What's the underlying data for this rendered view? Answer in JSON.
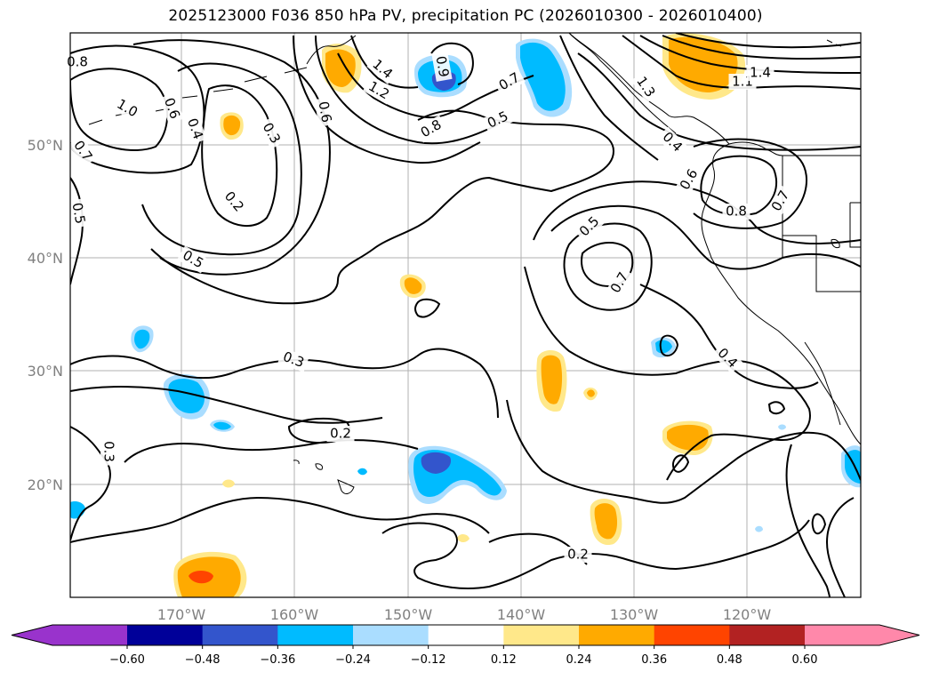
{
  "title": "2025123000 F036 850 hPa PV, precipitation PC (2026010300 - 2026010400)",
  "map": {
    "latitude_labels": [
      "50°N",
      "40°N",
      "30°N",
      "20°N"
    ],
    "longitude_labels": [
      "170°W",
      "160°W",
      "150°W",
      "140°W",
      "130°W",
      "120°W"
    ],
    "contour_labels": [
      "0.8",
      "1.0",
      "0.7",
      "0.6",
      "0.4",
      "0.3",
      "0.2",
      "0.5",
      "0.5",
      "1.2",
      "1.4",
      "0.6",
      "0.8",
      "0.9",
      "0.7",
      "0.5",
      "0.4",
      "1.3",
      "1.1",
      "1.4",
      "0.6",
      "0.8",
      "0.7",
      "0.5",
      "0.7",
      "0.4",
      "0.3",
      "0.2",
      "0.3",
      "0.2"
    ]
  },
  "colorbar": {
    "tick_labels": [
      "−0.60",
      "−0.48",
      "−0.36",
      "−0.24",
      "−0.12",
      "0.12",
      "0.24",
      "0.36",
      "0.48",
      "0.60"
    ],
    "colors": {
      "under": "#9933cc",
      "bins": [
        "#000099",
        "#3355cc",
        "#00bbff",
        "#aaddff",
        "#ffffff",
        "#ffe88a",
        "#ffaa00",
        "#ff4400",
        "#b22222"
      ],
      "over": "#ff88aa"
    }
  }
}
